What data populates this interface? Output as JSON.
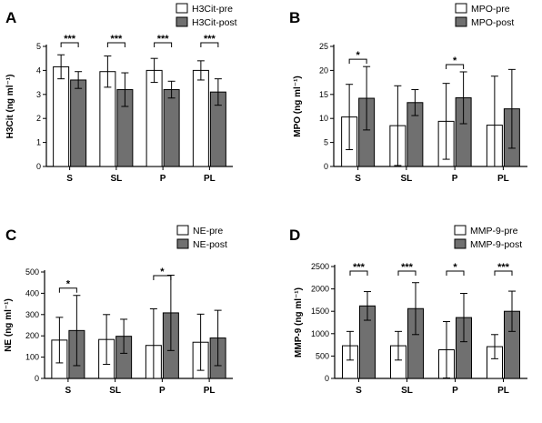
{
  "chart_data": [
    {
      "panel": "A",
      "type": "bar",
      "ylabel": "H3Cit (ng ml⁻¹)",
      "ylim": [
        0,
        5
      ],
      "yticks": [
        0,
        1,
        2,
        3,
        4,
        5
      ],
      "categories": [
        "S",
        "SL",
        "P",
        "PL"
      ],
      "legend_position": "top-right",
      "series": [
        {
          "name": "H3Cit-pre",
          "color": "#ffffff",
          "values": [
            4.15,
            3.95,
            4.0,
            4.0
          ],
          "sd": [
            0.5,
            0.65,
            0.5,
            0.4
          ]
        },
        {
          "name": "H3Cit-post",
          "color": "#707070",
          "values": [
            3.6,
            3.2,
            3.2,
            3.1
          ],
          "sd": [
            0.35,
            0.7,
            0.35,
            0.55
          ]
        }
      ],
      "significance": [
        {
          "category": "S",
          "label": "***"
        },
        {
          "category": "SL",
          "label": "***"
        },
        {
          "category": "P",
          "label": "***"
        },
        {
          "category": "PL",
          "label": "***"
        }
      ]
    },
    {
      "panel": "B",
      "type": "bar",
      "ylabel": "MPO (ng ml⁻¹)",
      "ylim": [
        0,
        25
      ],
      "yticks": [
        0,
        5,
        10,
        15,
        20,
        25
      ],
      "categories": [
        "S",
        "SL",
        "P",
        "PL"
      ],
      "legend_position": "top-right",
      "series": [
        {
          "name": "MPO-pre",
          "color": "#ffffff",
          "values": [
            10.3,
            8.5,
            9.4,
            8.6
          ],
          "sd": [
            6.8,
            8.3,
            7.9,
            10.2
          ]
        },
        {
          "name": "MPO-post",
          "color": "#707070",
          "values": [
            14.2,
            13.3,
            14.3,
            12.0
          ],
          "sd": [
            6.6,
            2.7,
            5.4,
            8.2
          ]
        }
      ],
      "significance": [
        {
          "category": "S",
          "label": "*"
        },
        {
          "category": "P",
          "label": "*"
        }
      ]
    },
    {
      "panel": "C",
      "type": "bar",
      "ylabel": "NE (ng ml⁻¹)",
      "ylim": [
        0,
        500
      ],
      "yticks": [
        0,
        100,
        200,
        300,
        400,
        500
      ],
      "categories": [
        "S",
        "SL",
        "P",
        "PL"
      ],
      "legend_position": "top-right",
      "series": [
        {
          "name": "NE-pre",
          "color": "#ffffff",
          "values": [
            180,
            183,
            155,
            170
          ],
          "sd": [
            107,
            117,
            172,
            132
          ]
        },
        {
          "name": "NE-post",
          "color": "#707070",
          "values": [
            225,
            198,
            308,
            190
          ],
          "sd": [
            165,
            80,
            177,
            130
          ]
        }
      ],
      "significance": [
        {
          "category": "S",
          "label": "*"
        },
        {
          "category": "P",
          "label": "*"
        }
      ]
    },
    {
      "panel": "D",
      "type": "bar",
      "ylabel": "MMP-9 (ng ml⁻¹)",
      "ylim": [
        0,
        2500
      ],
      "yticks": [
        0,
        500,
        1000,
        1500,
        2000,
        2500
      ],
      "categories": [
        "S",
        "SL",
        "P",
        "PL"
      ],
      "legend_position": "top-right",
      "series": [
        {
          "name": "MMP-9-pre",
          "color": "#ffffff",
          "values": [
            730,
            730,
            640,
            710
          ],
          "sd": [
            320,
            320,
            630,
            270
          ]
        },
        {
          "name": "MMP-9-post",
          "color": "#707070",
          "values": [
            1620,
            1560,
            1360,
            1500
          ],
          "sd": [
            320,
            580,
            540,
            450
          ]
        }
      ],
      "significance": [
        {
          "category": "S",
          "label": "***"
        },
        {
          "category": "SL",
          "label": "***"
        },
        {
          "category": "P",
          "label": "*"
        },
        {
          "category": "PL",
          "label": "***"
        }
      ]
    }
  ]
}
